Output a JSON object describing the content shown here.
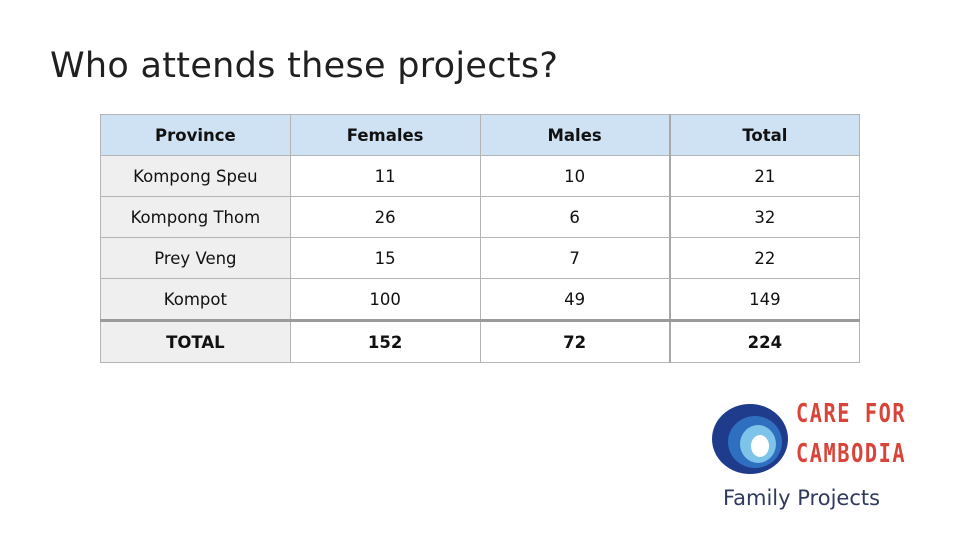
{
  "slide": {
    "title": "Who attends these projects?"
  },
  "table": {
    "headers": [
      "Province",
      "Females",
      "Males",
      "Total"
    ],
    "rows": [
      [
        "Kompong Speu",
        "11",
        "10",
        "21"
      ],
      [
        "Kompong Thom",
        "26",
        "6",
        "32"
      ],
      [
        "Prey Veng",
        "15",
        "7",
        "22"
      ],
      [
        "Kompot",
        "100",
        "49",
        "149"
      ]
    ],
    "total_row": [
      "TOTAL",
      "152",
      "72",
      "224"
    ]
  },
  "logo": {
    "line1": "CARE FOR",
    "line2": "CAMBODIA",
    "subtitle": "Family Projects",
    "colors": {
      "text": "#d9443a",
      "ring_outer": "#1f3b8c",
      "ring_mid": "#2f6fc0",
      "ring_inner": "#7ec3ea"
    }
  }
}
